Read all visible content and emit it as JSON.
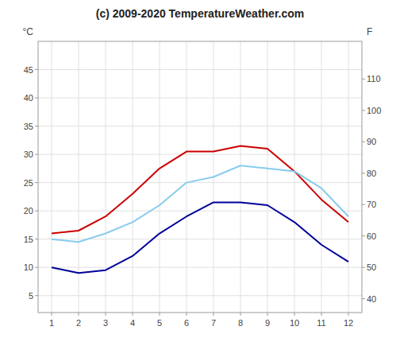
{
  "chart_data": {
    "type": "line",
    "title": "(c) 2009-2020 TemperatureWeather.com",
    "ylabel": "°C",
    "y2label": "F",
    "x": [
      1,
      2,
      3,
      4,
      5,
      6,
      7,
      8,
      9,
      10,
      11,
      12
    ],
    "series": [
      {
        "color": "#cc0000",
        "values": [
          16,
          16.5,
          19,
          23,
          27.5,
          30.5,
          30.5,
          31.5,
          31,
          27,
          22,
          18
        ]
      },
      {
        "color": "#000099",
        "values": [
          10,
          9,
          9.5,
          12,
          16,
          19,
          21.5,
          21.5,
          21,
          18,
          14,
          11
        ]
      },
      {
        "color": "#88ccee",
        "values": [
          15,
          14.5,
          16,
          18,
          21,
          25,
          26,
          28,
          27.5,
          27,
          24,
          19
        ]
      }
    ],
    "xlim": [
      0.5,
      12.5
    ],
    "xticks": [
      1,
      2,
      3,
      4,
      5,
      6,
      7,
      8,
      9,
      10,
      11,
      12
    ],
    "ylim": [
      2,
      50
    ],
    "yticks": [
      5,
      10,
      15,
      20,
      25,
      30,
      35,
      40,
      45
    ],
    "y2lim": [
      35.6,
      122
    ],
    "y2ticks": [
      40,
      50,
      60,
      70,
      80,
      90,
      100,
      110
    ],
    "grid": true
  }
}
